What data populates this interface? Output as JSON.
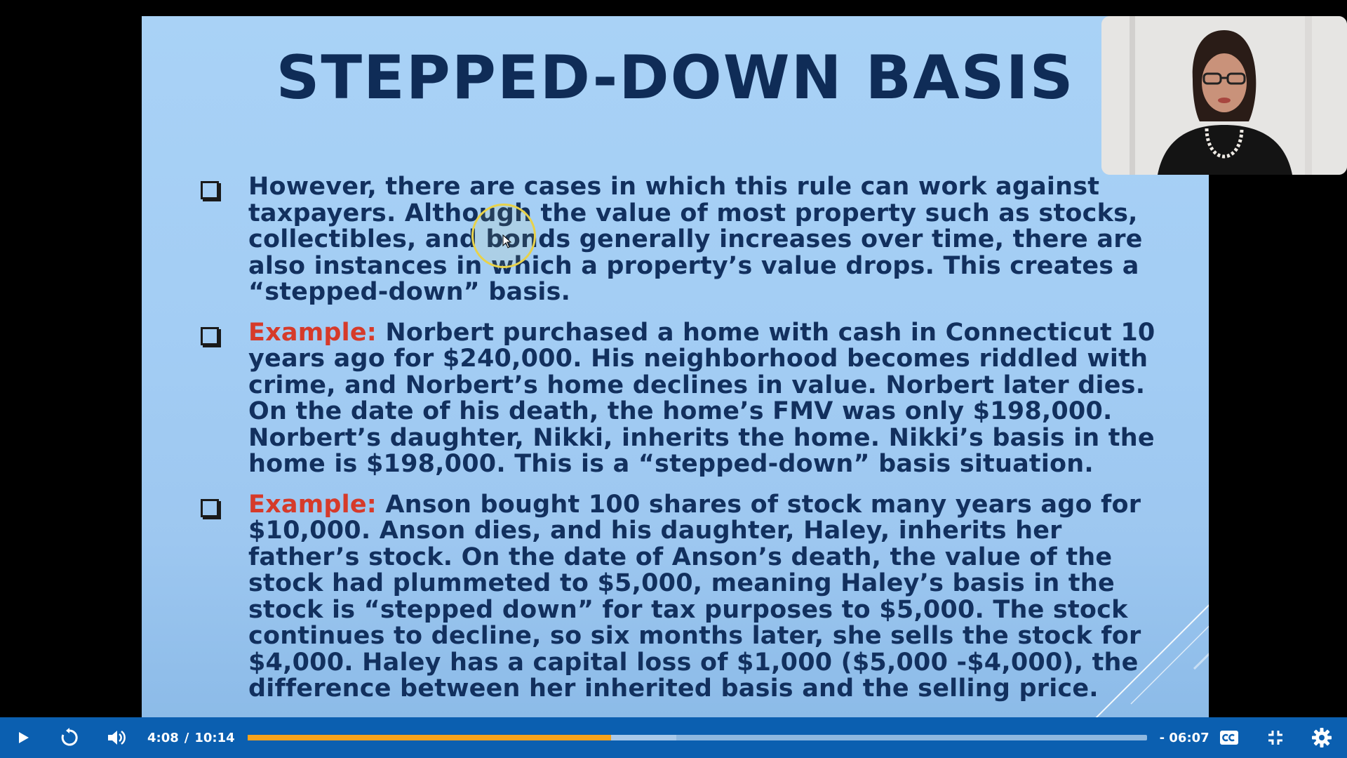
{
  "slide": {
    "title": "STEPPED-DOWN BASIS",
    "bullets": [
      {
        "label": "",
        "text": "However, there are cases in which this rule can work against taxpayers. Although the value of most property such as stocks, collectibles, and bonds generally increases over time, there are also instances in which a property’s value drops. This creates a “stepped-down” basis."
      },
      {
        "label": "Example:",
        "text": "Norbert purchased a home with cash in Connecticut 10 years ago for $240,000. His neighborhood becomes riddled with crime, and Norbert’s home declines in value. Norbert later dies. On the date of his death, the home’s FMV was only $198,000. Norbert’s daughter, Nikki, inherits the home. Nikki’s basis in the home is $198,000. This is a “stepped-down” basis situation."
      },
      {
        "label": "Example:",
        "text": "Anson bought 100 shares of stock many years ago for $10,000. Anson dies, and his daughter, Haley, inherits her father’s stock. On the date of Anson’s death, the value of the stock had plummeted to $5,000, meaning Haley’s basis in the stock is “stepped down” for tax purposes to $5,000. The stock continues to decline, so six months later, she sells the stock for $4,000. Haley has a capital loss of $1,000 ($5,000 -$4,000), the difference between her inherited basis and the selling price."
      }
    ]
  },
  "player": {
    "current_time": "4:08",
    "separator": "/",
    "duration": "10:14",
    "remaining_time": "- 06:07",
    "played_fraction": 0.404,
    "buffered_fraction": 0.477,
    "colors": {
      "bar": "#0b5fb0",
      "played": "#f7a21b",
      "buffered": "#a9c9ea",
      "track": "#8fb8e0"
    },
    "icons": [
      "play-icon",
      "replay-icon",
      "volume-icon",
      "captions-icon",
      "exit-fullscreen-icon",
      "settings-icon"
    ]
  }
}
